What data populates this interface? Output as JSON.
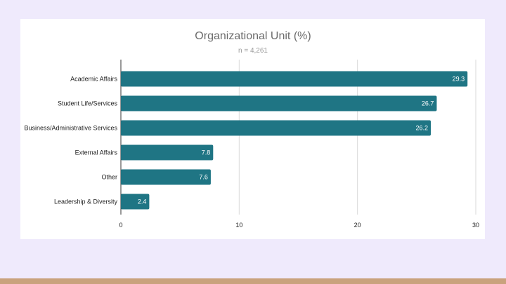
{
  "colors": {
    "background": "#efeafc",
    "bottom_bar": "#c9a27d",
    "bar": "#1f7584",
    "grid": "#d9d9d9"
  },
  "chart_data": {
    "type": "bar",
    "orientation": "horizontal",
    "title": "Organizational Unit (%)",
    "subtitle": "n = 4,261",
    "categories": [
      "Academic Affairs",
      "Student Life/Services",
      "Business/Administrative Services",
      "External Affairs",
      "Other",
      "Leadership & Diversity"
    ],
    "values": [
      29.3,
      26.7,
      26.2,
      7.8,
      7.6,
      2.4
    ],
    "value_labels": [
      "29.3",
      "26.7",
      "26.2",
      "7.8",
      "7.6",
      "2.4"
    ],
    "xlim": [
      0,
      30
    ],
    "xticks": [
      0,
      10,
      20,
      30
    ],
    "xtick_labels": [
      "0",
      "10",
      "20",
      "30"
    ],
    "grid": true,
    "legend": "none"
  }
}
